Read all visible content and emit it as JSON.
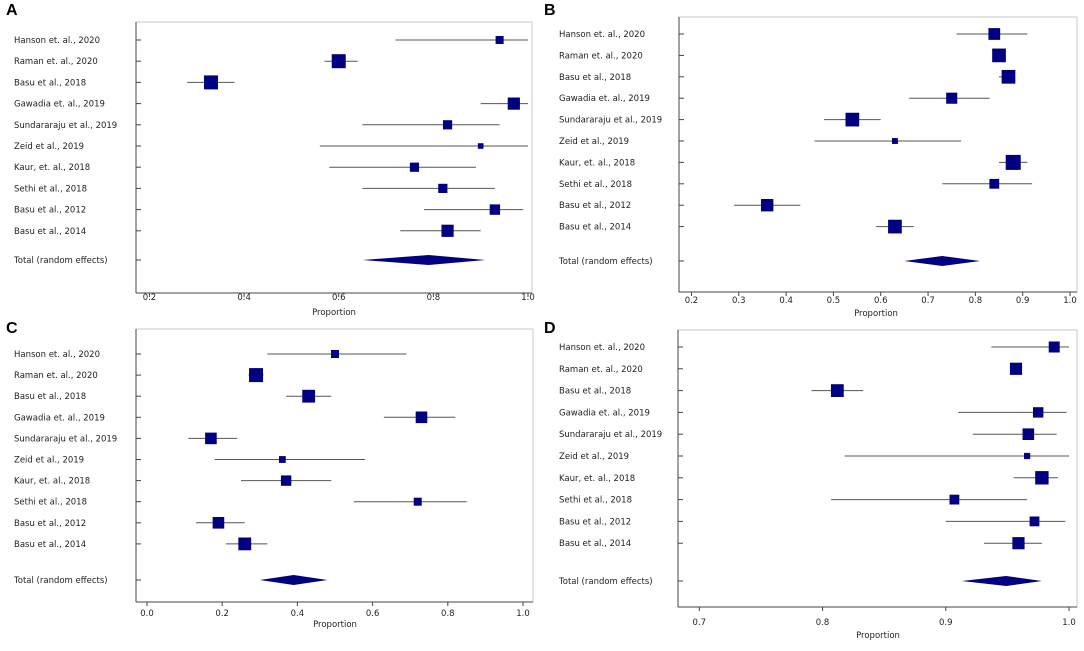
{
  "figure": {
    "colors": {
      "marker": "#000080",
      "line": "#555555",
      "axis": "#444444",
      "text": "#222222"
    }
  },
  "chart_data": [
    {
      "type": "forest",
      "panel_letter": "A",
      "xlabel": "Proportion",
      "xlim": [
        0.18,
        1.0
      ],
      "ticks": [
        0.2,
        0.4,
        0.6,
        0.8,
        1.0
      ],
      "tick_labels": [
        "0.2",
        "0.4",
        "0.6",
        "0.8",
        "1.0"
      ],
      "studies": [
        {
          "label": "Hanson et. al., 2020",
          "estimate": 0.94,
          "ci_low": 0.72,
          "ci_high": 1.0,
          "weight": 0.5
        },
        {
          "label": "Raman et. al., 2020",
          "estimate": 0.6,
          "ci_low": 0.57,
          "ci_high": 0.64,
          "weight": 1.0
        },
        {
          "label": "Basu et al., 2018",
          "estimate": 0.33,
          "ci_low": 0.28,
          "ci_high": 0.38,
          "weight": 1.0
        },
        {
          "label": "Gawadia et. al., 2019",
          "estimate": 0.97,
          "ci_low": 0.9,
          "ci_high": 1.0,
          "weight": 0.85
        },
        {
          "label": "Sundararaju et al., 2019",
          "estimate": 0.83,
          "ci_low": 0.65,
          "ci_high": 0.94,
          "weight": 0.6
        },
        {
          "label": "Zeid et al., 2019",
          "estimate": 0.9,
          "ci_low": 0.56,
          "ci_high": 1.0,
          "weight": 0.3
        },
        {
          "label": "Kaur, et. al., 2018",
          "estimate": 0.76,
          "ci_low": 0.58,
          "ci_high": 0.89,
          "weight": 0.6
        },
        {
          "label": "Sethi et al., 2018",
          "estimate": 0.82,
          "ci_low": 0.65,
          "ci_high": 0.93,
          "weight": 0.6
        },
        {
          "label": "Basu et al., 2012",
          "estimate": 0.93,
          "ci_low": 0.78,
          "ci_high": 0.99,
          "weight": 0.7
        },
        {
          "label": "Basu et al., 2014",
          "estimate": 0.83,
          "ci_low": 0.73,
          "ci_high": 0.9,
          "weight": 0.85
        }
      ],
      "total": {
        "label": "Total (random effects)",
        "estimate": 0.79,
        "ci_low": 0.65,
        "ci_high": 0.91
      }
    },
    {
      "type": "forest",
      "panel_letter": "B",
      "xlabel": "Proportion",
      "xlim": [
        0.18,
        1.0
      ],
      "ticks": [
        0.2,
        0.3,
        0.4,
        0.5,
        0.6,
        0.7,
        0.8,
        0.9,
        1.0
      ],
      "tick_labels": [
        "0.2",
        "0.3",
        "0.4",
        "0.5",
        "0.6",
        "0.7",
        "0.8",
        "0.9",
        "1.0"
      ],
      "studies": [
        {
          "label": "Hanson et. al., 2020",
          "estimate": 0.84,
          "ci_low": 0.76,
          "ci_high": 0.91,
          "weight": 0.75
        },
        {
          "label": "Raman et. al., 2020",
          "estimate": 0.85,
          "ci_low": 0.84,
          "ci_high": 0.86,
          "weight": 0.9
        },
        {
          "label": "Basu et al., 2018",
          "estimate": 0.87,
          "ci_low": 0.85,
          "ci_high": 0.88,
          "weight": 0.9
        },
        {
          "label": "Gawadia et. al., 2019",
          "estimate": 0.75,
          "ci_low": 0.66,
          "ci_high": 0.83,
          "weight": 0.7
        },
        {
          "label": "Sundararaju et al., 2019",
          "estimate": 0.54,
          "ci_low": 0.48,
          "ci_high": 0.6,
          "weight": 0.9
        },
        {
          "label": "Zeid et al., 2019",
          "estimate": 0.63,
          "ci_low": 0.46,
          "ci_high": 0.77,
          "weight": 0.3
        },
        {
          "label": "Kaur, et. al., 2018",
          "estimate": 0.88,
          "ci_low": 0.85,
          "ci_high": 0.91,
          "weight": 1.0
        },
        {
          "label": "Sethi et al., 2018",
          "estimate": 0.84,
          "ci_low": 0.73,
          "ci_high": 0.92,
          "weight": 0.6
        },
        {
          "label": "Basu et al., 2012",
          "estimate": 0.36,
          "ci_low": 0.29,
          "ci_high": 0.43,
          "weight": 0.8
        },
        {
          "label": "Basu et al., 2014",
          "estimate": 0.63,
          "ci_low": 0.59,
          "ci_high": 0.67,
          "weight": 0.9
        }
      ],
      "total": {
        "label": "Total (random effects)",
        "estimate": 0.73,
        "ci_low": 0.65,
        "ci_high": 0.81
      }
    },
    {
      "type": "forest",
      "panel_letter": "C",
      "xlabel": "Proportion",
      "xlim": [
        0.0,
        1.0
      ],
      "ticks": [
        0.0,
        0.2,
        0.4,
        0.6,
        0.8,
        1.0
      ],
      "tick_labels": [
        "0.0",
        "0.2",
        "0.4",
        "0.6",
        "0.8",
        "1.0"
      ],
      "studies": [
        {
          "label": "Hanson et. al., 2020",
          "estimate": 0.5,
          "ci_low": 0.32,
          "ci_high": 0.69,
          "weight": 0.5
        },
        {
          "label": "Raman et. al., 2020",
          "estimate": 0.29,
          "ci_low": 0.27,
          "ci_high": 0.31,
          "weight": 1.0
        },
        {
          "label": "Basu et al., 2018",
          "estimate": 0.43,
          "ci_low": 0.37,
          "ci_high": 0.49,
          "weight": 0.9
        },
        {
          "label": "Gawadia et. al., 2019",
          "estimate": 0.73,
          "ci_low": 0.63,
          "ci_high": 0.82,
          "weight": 0.8
        },
        {
          "label": "Sundararaju et al., 2019",
          "estimate": 0.17,
          "ci_low": 0.11,
          "ci_high": 0.24,
          "weight": 0.8
        },
        {
          "label": "Zeid et al., 2019",
          "estimate": 0.36,
          "ci_low": 0.18,
          "ci_high": 0.58,
          "weight": 0.4
        },
        {
          "label": "Kaur, et. al., 2018",
          "estimate": 0.37,
          "ci_low": 0.25,
          "ci_high": 0.49,
          "weight": 0.7
        },
        {
          "label": "Sethi et al., 2018",
          "estimate": 0.72,
          "ci_low": 0.55,
          "ci_high": 0.85,
          "weight": 0.5
        },
        {
          "label": "Basu et al., 2012",
          "estimate": 0.19,
          "ci_low": 0.13,
          "ci_high": 0.26,
          "weight": 0.8
        },
        {
          "label": "Basu et al., 2014",
          "estimate": 0.26,
          "ci_low": 0.21,
          "ci_high": 0.32,
          "weight": 0.9
        }
      ],
      "total": {
        "label": "Total (random effects)",
        "estimate": 0.39,
        "ci_low": 0.3,
        "ci_high": 0.48
      }
    },
    {
      "type": "forest",
      "panel_letter": "D",
      "xlabel": "Proportion",
      "xlim": [
        0.69,
        1.0
      ],
      "ticks": [
        0.7,
        0.8,
        0.9,
        1.0
      ],
      "tick_labels": [
        "0.7",
        "0.8",
        "0.9",
        "1.0"
      ],
      "studies": [
        {
          "label": "Hanson et. al., 2020",
          "estimate": 0.988,
          "ci_low": 0.937,
          "ci_high": 1.0,
          "weight": 0.75
        },
        {
          "label": "Raman et. al., 2020",
          "estimate": 0.957,
          "ci_low": 0.953,
          "ci_high": 0.961,
          "weight": 0.85
        },
        {
          "label": "Basu et al., 2018",
          "estimate": 0.812,
          "ci_low": 0.791,
          "ci_high": 0.833,
          "weight": 0.9
        },
        {
          "label": "Gawadia et. al., 2019",
          "estimate": 0.975,
          "ci_low": 0.91,
          "ci_high": 0.998,
          "weight": 0.7
        },
        {
          "label": "Sundararaju et al., 2019",
          "estimate": 0.967,
          "ci_low": 0.922,
          "ci_high": 0.99,
          "weight": 0.8
        },
        {
          "label": "Zeid et al., 2019",
          "estimate": 0.966,
          "ci_low": 0.818,
          "ci_high": 1.0,
          "weight": 0.35
        },
        {
          "label": "Kaur, et. al., 2018",
          "estimate": 0.978,
          "ci_low": 0.955,
          "ci_high": 0.991,
          "weight": 0.95
        },
        {
          "label": "Sethi et al., 2018",
          "estimate": 0.907,
          "ci_low": 0.807,
          "ci_high": 0.966,
          "weight": 0.65
        },
        {
          "label": "Basu et al., 2012",
          "estimate": 0.972,
          "ci_low": 0.9,
          "ci_high": 0.997,
          "weight": 0.65
        },
        {
          "label": "Basu et al., 2014",
          "estimate": 0.959,
          "ci_low": 0.931,
          "ci_high": 0.978,
          "weight": 0.85
        }
      ],
      "total": {
        "label": "Total (random effects)",
        "estimate": 0.949,
        "ci_low": 0.913,
        "ci_high": 0.978
      }
    }
  ]
}
